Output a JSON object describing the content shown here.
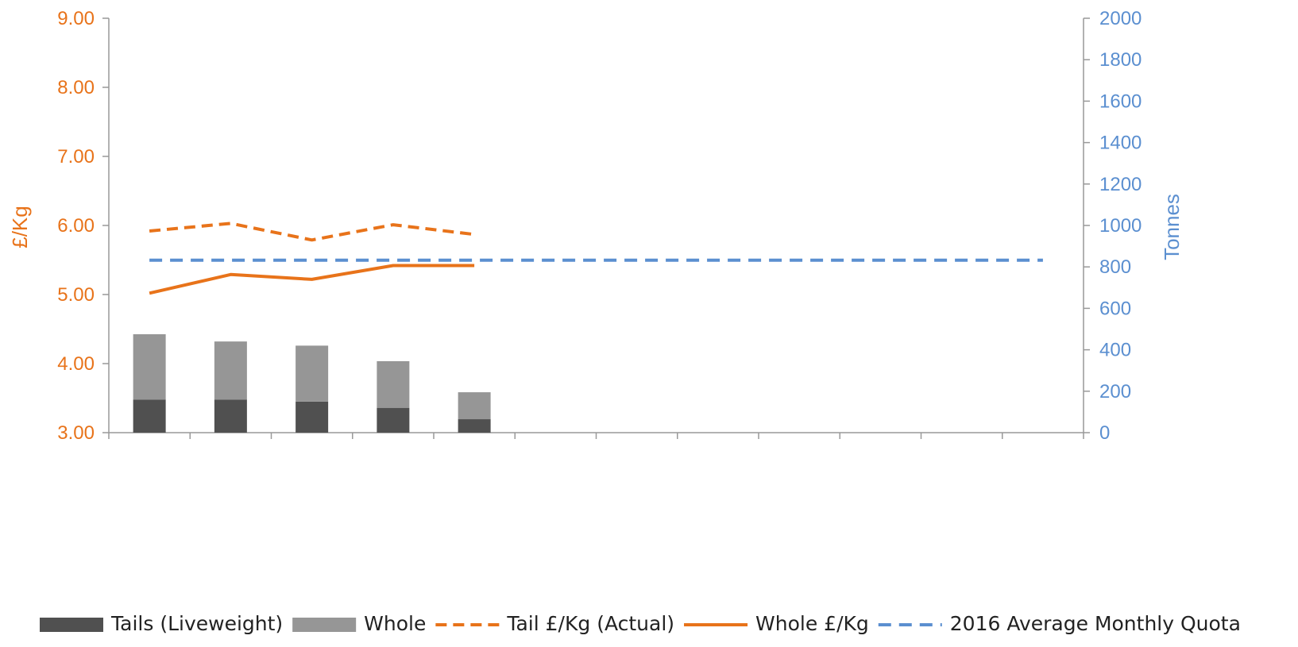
{
  "chart_data": {
    "type": "bar",
    "categories": [
      "",
      "",
      "",
      "",
      "",
      "",
      "",
      "",
      "",
      "",
      "",
      ""
    ],
    "y_left": {
      "label": "£/Kg",
      "range": [
        3.0,
        9.0
      ],
      "ticks": [
        "3.00",
        "4.00",
        "5.00",
        "6.00",
        "7.00",
        "8.00",
        "9.00"
      ]
    },
    "y_right": {
      "label": "Tonnes",
      "range": [
        0,
        2000
      ],
      "ticks": [
        "0",
        "200",
        "400",
        "600",
        "800",
        "1000",
        "1200",
        "1400",
        "1600",
        "1800",
        "2000"
      ]
    },
    "bar_series": [
      {
        "name": "Tails (Liveweight)",
        "axis": "right",
        "values": [
          160,
          160,
          150,
          120,
          65
        ]
      },
      {
        "name": "Whole",
        "axis": "right",
        "values": [
          315,
          280,
          270,
          225,
          130
        ]
      }
    ],
    "line_series": [
      {
        "name": "Tail £/Kg (Actual)",
        "axis": "left",
        "style": "dashed",
        "values": [
          5.92,
          6.03,
          5.79,
          6.01,
          5.87
        ]
      },
      {
        "name": "Whole £/Kg",
        "axis": "left",
        "style": "solid",
        "values": [
          5.02,
          5.29,
          5.22,
          5.42,
          5.42
        ]
      },
      {
        "name": "2016 Average Monthly Quota",
        "axis": "right",
        "style": "dashed",
        "values": [
          832,
          832,
          832,
          832,
          832,
          832,
          832,
          832,
          832,
          832,
          832,
          832
        ]
      }
    ],
    "legend": {
      "position": "bottom",
      "items": [
        {
          "label": "Tails (Liveweight)",
          "kind": "box",
          "color": "#505050"
        },
        {
          "label": "Whole",
          "kind": "box",
          "color": "#969696"
        },
        {
          "label": "Tail £/Kg (Actual)",
          "kind": "dash",
          "color": "#e8731a"
        },
        {
          "label": "Whole £/Kg",
          "kind": "line",
          "color": "#e8731a"
        },
        {
          "label": "2016 Average Monthly Quota",
          "kind": "dash",
          "color": "#5b8fd0"
        }
      ]
    },
    "colors": {
      "tails_bar": "#505050",
      "whole_bar": "#969696",
      "orange": "#e8731a",
      "blue": "#5b8fd0",
      "axis": "#999999"
    },
    "grid": false
  }
}
